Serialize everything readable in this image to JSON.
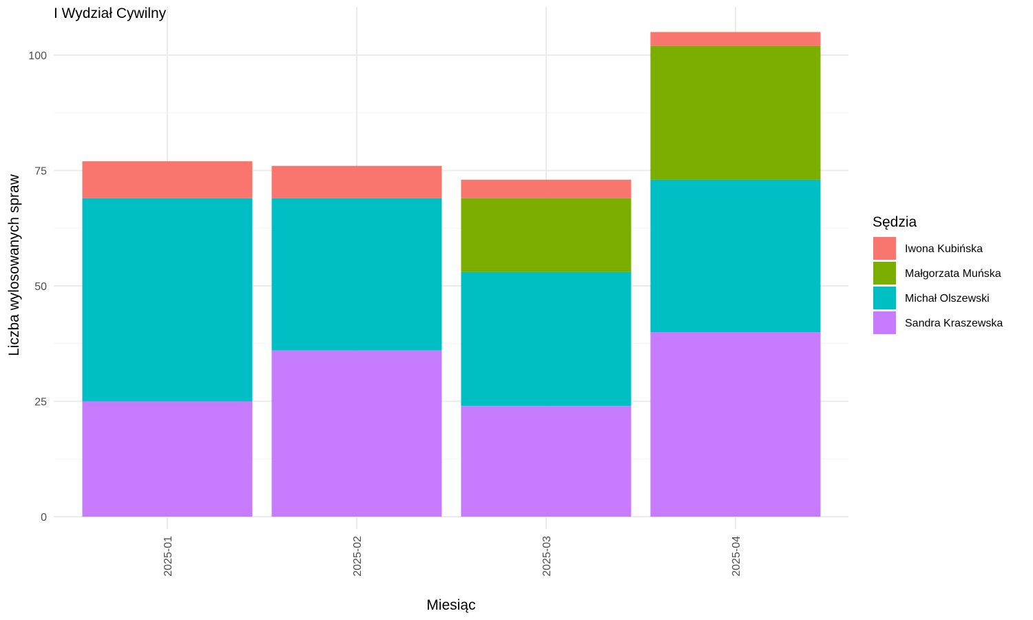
{
  "chart_data": {
    "type": "bar",
    "stacked": true,
    "title": "I Wydział Cywilny",
    "xlabel": "Miesiąc",
    "ylabel": "Liczba wylosowanych spraw",
    "ylim": [
      0,
      105
    ],
    "yticks": [
      0,
      25,
      50,
      75,
      100
    ],
    "categories": [
      "2025-01",
      "2025-02",
      "2025-03",
      "2025-04"
    ],
    "grid": true,
    "legend": {
      "title": "Sędzia",
      "position": "right"
    },
    "series": [
      {
        "name": "Sandra Kraszewska",
        "color": "#C77CFF",
        "values": [
          25,
          36,
          24,
          40
        ]
      },
      {
        "name": "Michał Olszewski",
        "color": "#00BFC4",
        "values": [
          44,
          33,
          29,
          33
        ]
      },
      {
        "name": "Małgorzata Muńska",
        "color": "#7CAE00",
        "values": [
          0,
          0,
          16,
          29
        ]
      },
      {
        "name": "Iwona Kubińska",
        "color": "#F8766D",
        "values": [
          8,
          7,
          4,
          3
        ]
      }
    ],
    "legend_order": [
      "Iwona Kubińska",
      "Małgorzata Muńska",
      "Michał Olszewski",
      "Sandra Kraszewska"
    ]
  }
}
